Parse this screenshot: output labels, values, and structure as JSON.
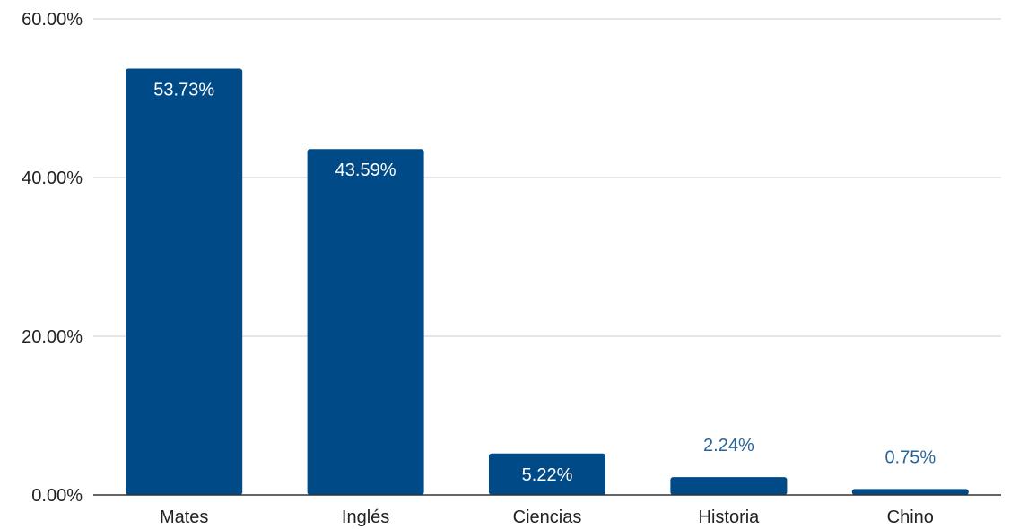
{
  "chart_data": {
    "type": "bar",
    "categories": [
      "Mates",
      "Inglés",
      "Ciencias",
      "Historia",
      "Chino"
    ],
    "values": [
      53.73,
      43.59,
      5.22,
      2.24,
      0.75
    ],
    "data_labels": [
      "53.73%",
      "43.59%",
      "5.22%",
      "2.24%",
      "0.75%"
    ],
    "y_ticks": [
      0,
      20,
      40,
      60
    ],
    "y_tick_labels": [
      "0.00%",
      "20.00%",
      "40.00%",
      "60.00%"
    ],
    "ylim": [
      0,
      60
    ],
    "title": "",
    "xlabel": "",
    "ylabel": "",
    "grid": true,
    "legend": "none",
    "colors": {
      "bar": "#004a87",
      "label_inside": "#ffffff",
      "label_outside": "#2a6599",
      "grid": "#cccccc",
      "axis": "#333333"
    }
  }
}
